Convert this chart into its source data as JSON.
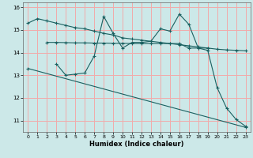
{
  "title": "",
  "xlabel": "Humidex (Indice chaleur)",
  "xlim": [
    -0.5,
    23.5
  ],
  "ylim": [
    10.5,
    16.2
  ],
  "yticks": [
    11,
    12,
    13,
    14,
    15,
    16
  ],
  "xticks": [
    0,
    1,
    2,
    3,
    4,
    5,
    6,
    7,
    8,
    9,
    10,
    11,
    12,
    13,
    14,
    15,
    16,
    17,
    18,
    19,
    20,
    21,
    22,
    23
  ],
  "bg_color": "#cce8e8",
  "grid_color": "#f2aaaa",
  "line_color": "#1a6060",
  "line1_x": [
    0,
    1,
    2,
    3,
    4,
    5,
    6,
    7,
    8,
    9,
    10,
    11,
    12,
    13,
    14,
    15,
    16,
    17,
    18,
    19,
    20,
    21,
    22,
    23
  ],
  "line1_y": [
    15.3,
    15.5,
    15.4,
    15.3,
    15.2,
    15.1,
    15.05,
    14.95,
    14.85,
    14.78,
    14.65,
    14.6,
    14.55,
    14.5,
    14.45,
    14.4,
    14.35,
    14.3,
    14.25,
    14.2,
    14.15,
    14.12,
    14.1,
    14.08
  ],
  "line2_x": [
    2,
    3,
    4,
    5,
    6,
    7,
    8,
    9,
    10,
    11,
    12,
    13,
    14,
    15,
    16,
    17,
    18,
    19
  ],
  "line2_y": [
    14.45,
    14.45,
    14.44,
    14.43,
    14.43,
    14.42,
    14.42,
    14.41,
    14.41,
    14.4,
    14.4,
    14.4,
    14.4,
    14.4,
    14.4,
    14.2,
    14.2,
    14.2
  ],
  "line3_x": [
    3,
    4,
    5,
    6,
    7,
    8,
    9,
    10,
    11,
    12,
    13,
    14,
    15,
    16,
    17,
    18,
    19,
    20,
    21,
    22,
    23
  ],
  "line3_y": [
    13.5,
    13.0,
    13.05,
    13.1,
    13.85,
    15.6,
    14.85,
    14.2,
    14.45,
    14.45,
    14.5,
    15.05,
    14.95,
    15.7,
    15.25,
    14.2,
    14.1,
    12.45,
    11.55,
    11.05,
    10.75
  ],
  "line4_x": [
    0,
    23
  ],
  "line4_y": [
    13.3,
    10.7
  ]
}
